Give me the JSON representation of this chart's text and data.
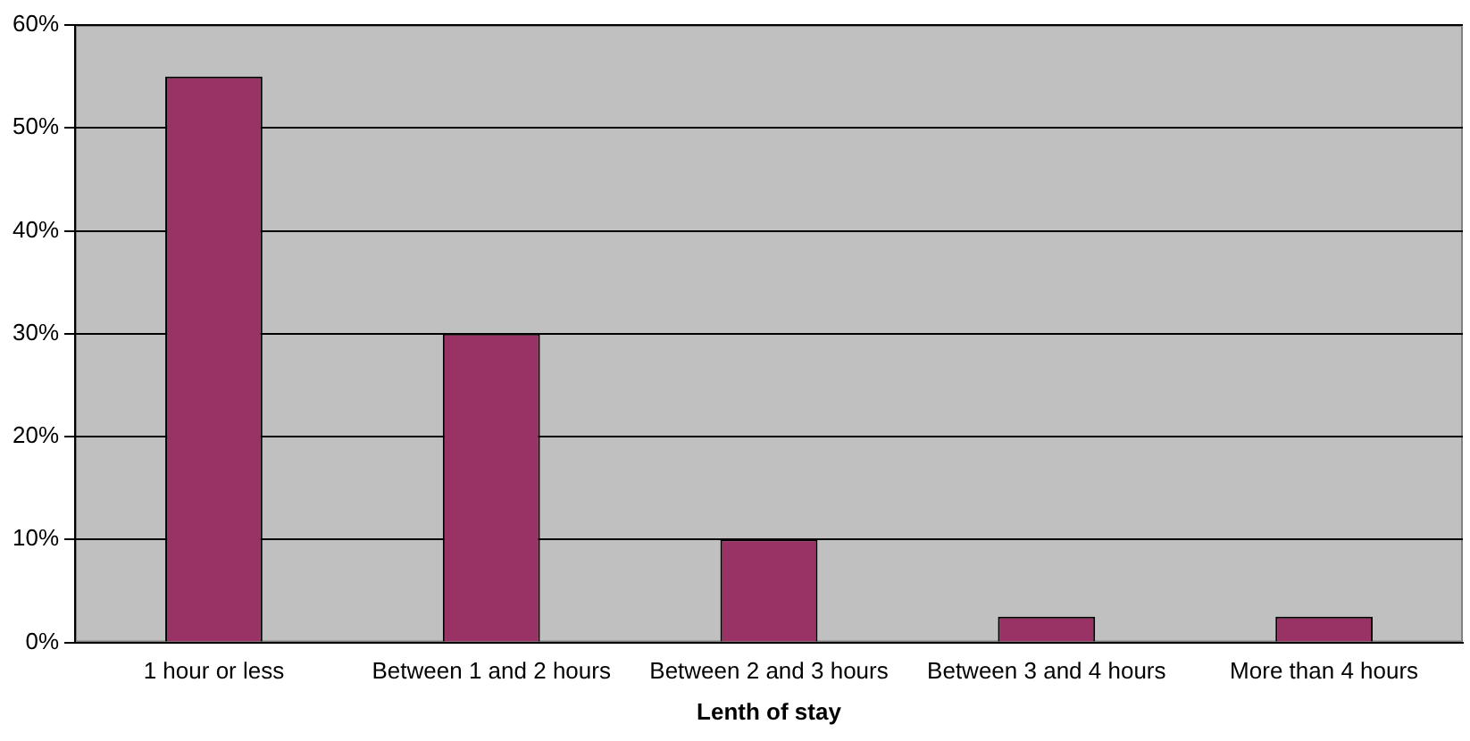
{
  "chart_data": {
    "type": "bar",
    "xlabel": "Lenth of stay",
    "categories": [
      "1 hour or less",
      "Between 1 and 2 hours",
      "Between 2 and 3 hours",
      "Between 3 and 4 hours",
      "More than 4 hours"
    ],
    "values": [
      55,
      30,
      10,
      2.5,
      2.5
    ],
    "color": "#993366",
    "ylim": [
      0,
      60
    ],
    "yticks": [
      {
        "value": 0,
        "label": "0%"
      },
      {
        "value": 10,
        "label": "10%"
      },
      {
        "value": 20,
        "label": "20%"
      },
      {
        "value": 30,
        "label": "30%"
      },
      {
        "value": 40,
        "label": "40%"
      },
      {
        "value": 50,
        "label": "50%"
      },
      {
        "value": 60,
        "label": "60%"
      }
    ],
    "grid": "y",
    "legend": false
  }
}
